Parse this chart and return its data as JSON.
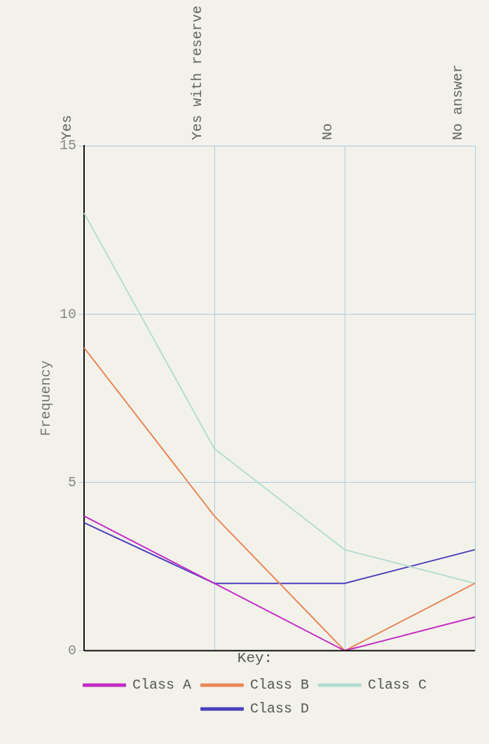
{
  "chart_data": {
    "type": "line",
    "ylabel": "Frequency",
    "legend_title": "Key:",
    "categories": [
      "Yes",
      "Yes with reserve",
      "No",
      "No answer"
    ],
    "series": [
      {
        "name": "Class A",
        "color": "#c42cc4",
        "values": [
          4,
          2,
          0,
          1
        ]
      },
      {
        "name": "Class B",
        "color": "#e8875a",
        "values": [
          9,
          4,
          0,
          2
        ]
      },
      {
        "name": "Class C",
        "color": "#b4dcd2",
        "values": [
          13,
          6,
          3,
          2
        ]
      },
      {
        "name": "Class D",
        "color": "#4b3fc0",
        "values": [
          3.8,
          2,
          2,
          3
        ]
      }
    ],
    "ylim": [
      0,
      15
    ],
    "yticks": [
      0,
      5,
      10,
      15
    ],
    "grid": true,
    "legend": "bottom",
    "marker": "none",
    "line_style": "solid"
  }
}
